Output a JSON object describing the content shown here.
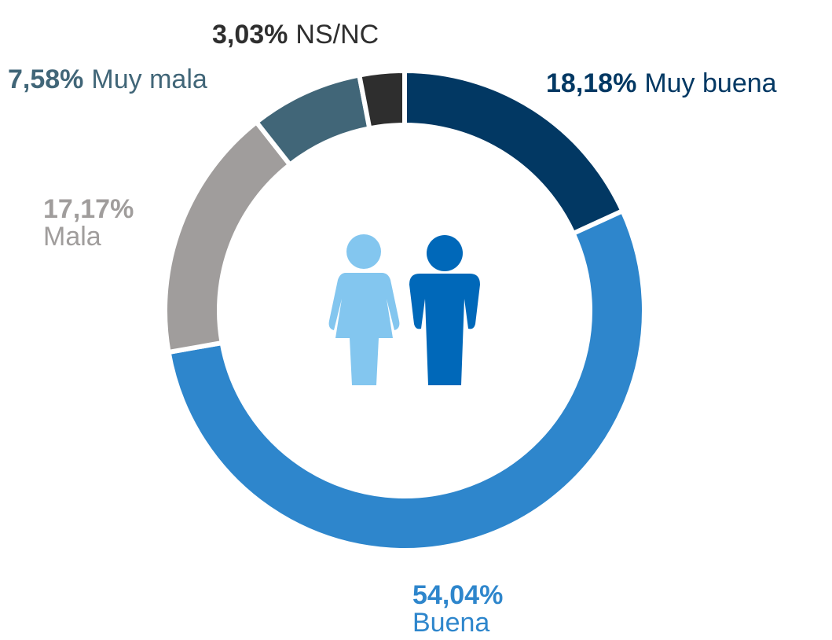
{
  "chart_data": {
    "type": "donut",
    "categories": [
      "Muy buena",
      "Buena",
      "Mala",
      "Muy mala",
      "NS/NC"
    ],
    "values": [
      18.18,
      54.04,
      17.17,
      7.58,
      3.03
    ],
    "value_labels": [
      "18,18%",
      "54,04%",
      "17,17%",
      "7,58%",
      "3,03%"
    ],
    "colors": [
      "#023863",
      "#2e86cc",
      "#a09d9c",
      "#416678",
      "#2e2e2e"
    ]
  }
}
